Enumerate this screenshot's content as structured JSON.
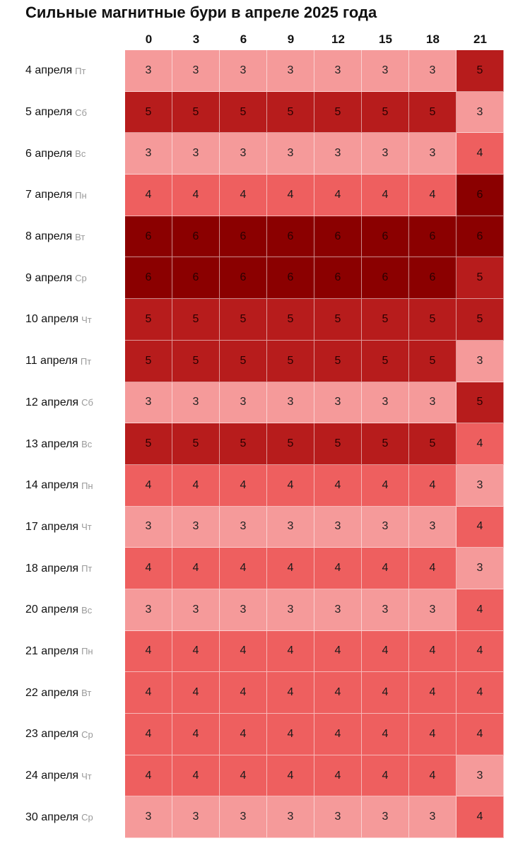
{
  "title": "Сильные магнитные бури в апреле 2025 года",
  "chart_data": {
    "type": "heatmap",
    "title": "Сильные магнитные бури в апреле 2025 года",
    "columns": [
      "0",
      "3",
      "6",
      "9",
      "12",
      "15",
      "18",
      "21"
    ],
    "rows": [
      {
        "date": "4 апреля",
        "dow": "Пт",
        "values": [
          3,
          3,
          3,
          3,
          3,
          3,
          3,
          5
        ]
      },
      {
        "date": "5 апреля",
        "dow": "Сб",
        "values": [
          5,
          5,
          5,
          5,
          5,
          5,
          5,
          3
        ]
      },
      {
        "date": "6 апреля",
        "dow": "Вс",
        "values": [
          3,
          3,
          3,
          3,
          3,
          3,
          3,
          4
        ]
      },
      {
        "date": "7 апреля",
        "dow": "Пн",
        "values": [
          4,
          4,
          4,
          4,
          4,
          4,
          4,
          6
        ]
      },
      {
        "date": "8 апреля",
        "dow": "Вт",
        "values": [
          6,
          6,
          6,
          6,
          6,
          6,
          6,
          6
        ]
      },
      {
        "date": "9 апреля",
        "dow": "Ср",
        "values": [
          6,
          6,
          6,
          6,
          6,
          6,
          6,
          5
        ]
      },
      {
        "date": "10 апреля",
        "dow": "Чт",
        "values": [
          5,
          5,
          5,
          5,
          5,
          5,
          5,
          5
        ]
      },
      {
        "date": "11 апреля",
        "dow": "Пт",
        "values": [
          5,
          5,
          5,
          5,
          5,
          5,
          5,
          3
        ]
      },
      {
        "date": "12 апреля",
        "dow": "Сб",
        "values": [
          3,
          3,
          3,
          3,
          3,
          3,
          3,
          5
        ]
      },
      {
        "date": "13 апреля",
        "dow": "Вс",
        "values": [
          5,
          5,
          5,
          5,
          5,
          5,
          5,
          4
        ]
      },
      {
        "date": "14 апреля",
        "dow": "Пн",
        "values": [
          4,
          4,
          4,
          4,
          4,
          4,
          4,
          3
        ]
      },
      {
        "date": "17 апреля",
        "dow": "Чт",
        "values": [
          3,
          3,
          3,
          3,
          3,
          3,
          3,
          4
        ]
      },
      {
        "date": "18 апреля",
        "dow": "Пт",
        "values": [
          4,
          4,
          4,
          4,
          4,
          4,
          4,
          3
        ]
      },
      {
        "date": "20 апреля",
        "dow": "Вс",
        "values": [
          3,
          3,
          3,
          3,
          3,
          3,
          3,
          4
        ]
      },
      {
        "date": "21 апреля",
        "dow": "Пн",
        "values": [
          4,
          4,
          4,
          4,
          4,
          4,
          4,
          4
        ]
      },
      {
        "date": "22 апреля",
        "dow": "Вт",
        "values": [
          4,
          4,
          4,
          4,
          4,
          4,
          4,
          4
        ]
      },
      {
        "date": "23 апреля",
        "dow": "Ср",
        "values": [
          4,
          4,
          4,
          4,
          4,
          4,
          4,
          4
        ]
      },
      {
        "date": "24 апреля",
        "dow": "Чт",
        "values": [
          4,
          4,
          4,
          4,
          4,
          4,
          4,
          3
        ]
      },
      {
        "date": "30 апреля",
        "dow": "Ср",
        "values": [
          3,
          3,
          3,
          3,
          3,
          3,
          3,
          4
        ]
      }
    ],
    "color_scale": {
      "3": "#f59a9a",
      "4": "#ee5f5f",
      "5": "#b71c1c",
      "6": "#8b0000"
    },
    "text_colors": {
      "3": "#222222",
      "4": "#1a1a1a",
      "5": "#2a0000",
      "6": "#2a0000"
    }
  }
}
